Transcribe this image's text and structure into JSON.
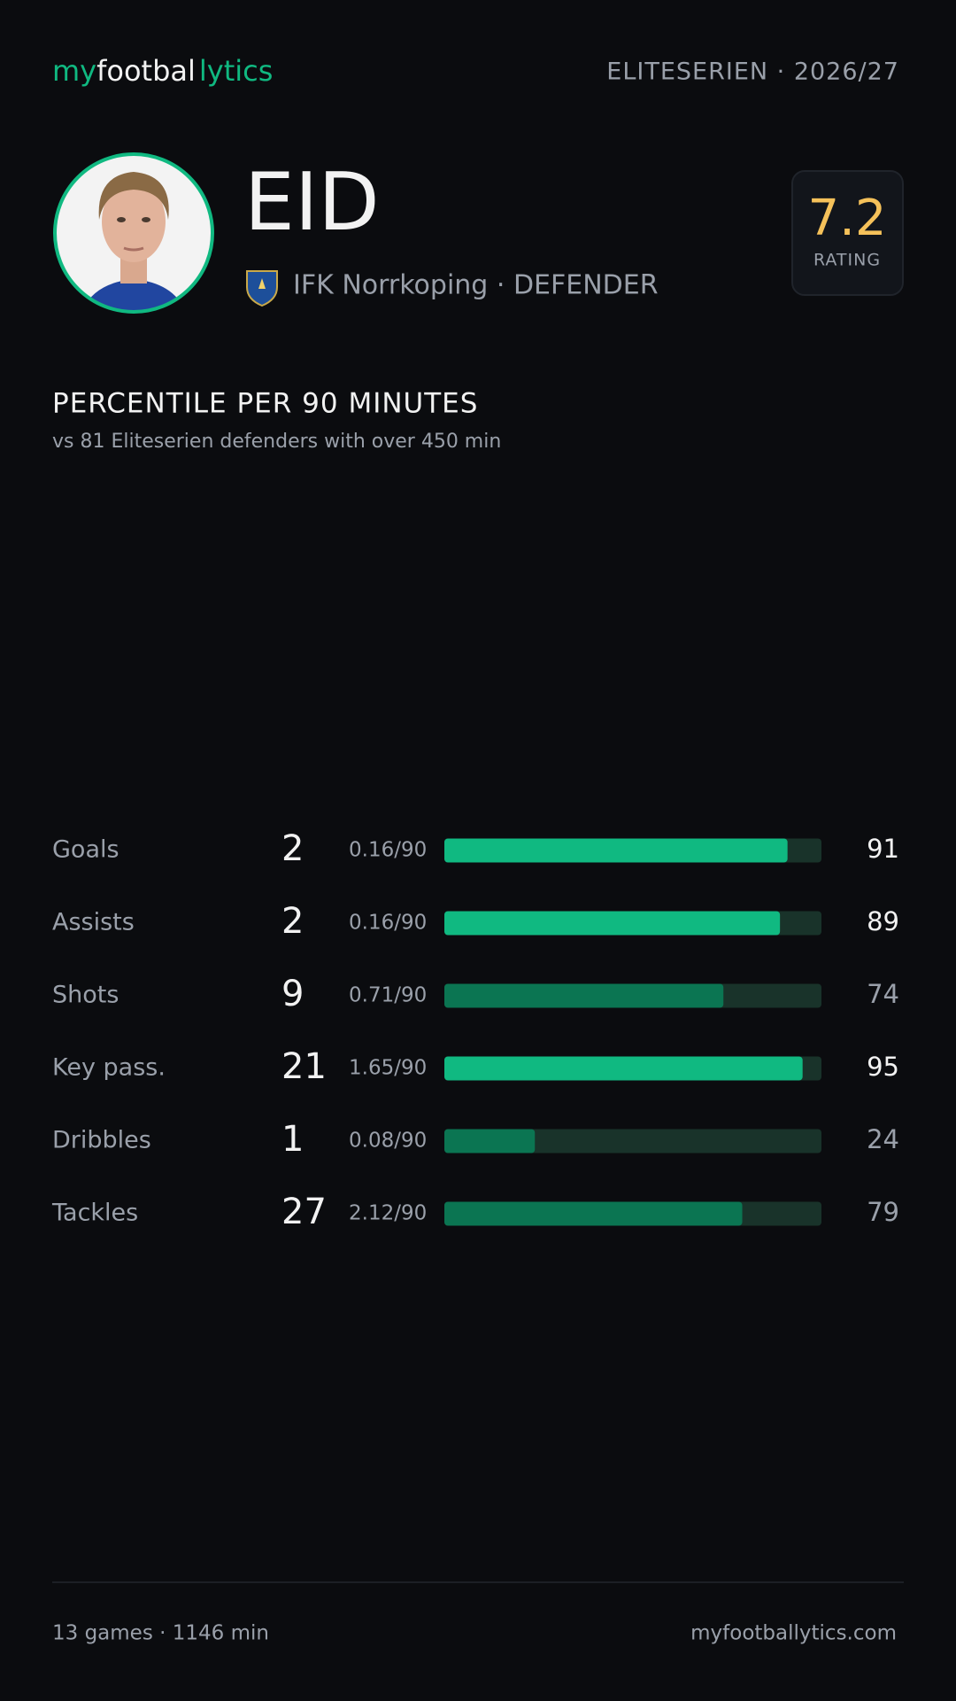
{
  "header": {
    "logo": [
      "my",
      "footbal",
      "lytics"
    ],
    "league": "ELITESERIEN · 2026/27"
  },
  "player": {
    "name": "EID",
    "club_line": "IFK Norrkoping · DEFENDER",
    "rating": 7.2,
    "rating_label": "RATING"
  },
  "section": {
    "title": "PERCENTILE PER 90 MINUTES",
    "subtitle": "vs 81 Eliteserien defenders with over 450 min"
  },
  "rows": [
    {
      "label": "Goals",
      "count": 2,
      "per90": "0.16/90",
      "percentile": 91,
      "color": "#10b981"
    },
    {
      "label": "Assists",
      "count": 2,
      "per90": "0.16/90",
      "percentile": 89,
      "color": "#10b981"
    },
    {
      "label": "Shots",
      "count": 9,
      "per90": "0.71/90",
      "percentile": 74,
      "color": "#0b7552"
    },
    {
      "label": "Key pass.",
      "count": 21,
      "per90": "1.65/90",
      "percentile": 95,
      "color": "#10b981"
    },
    {
      "label": "Dribbles",
      "count": 1,
      "per90": "0.08/90",
      "percentile": 24,
      "color": "#0b7552"
    },
    {
      "label": "Tackles",
      "count": 27,
      "per90": "2.12/90",
      "percentile": 79,
      "color": "#0b7552"
    }
  ],
  "footer": {
    "left": "13 games · 1146 min",
    "right": "myfootballytics.com"
  }
}
